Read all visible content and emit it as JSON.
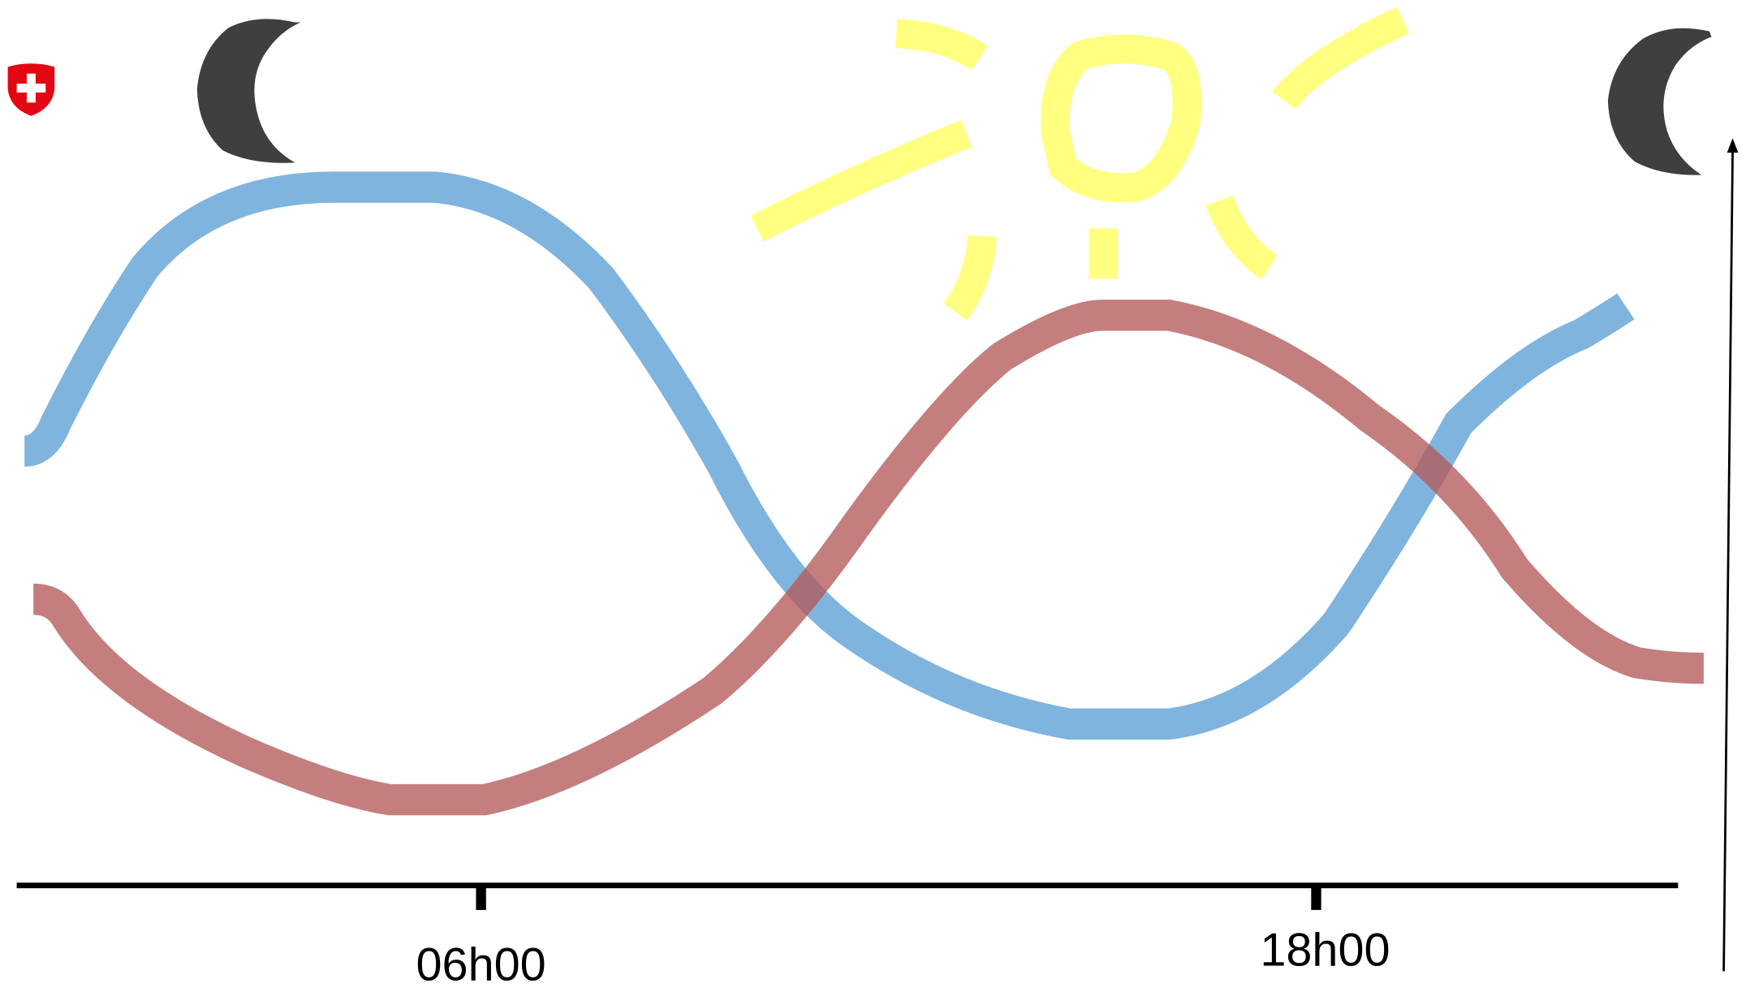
{
  "axis": {
    "ticks": [
      "06h00",
      "18h00"
    ]
  }
}
